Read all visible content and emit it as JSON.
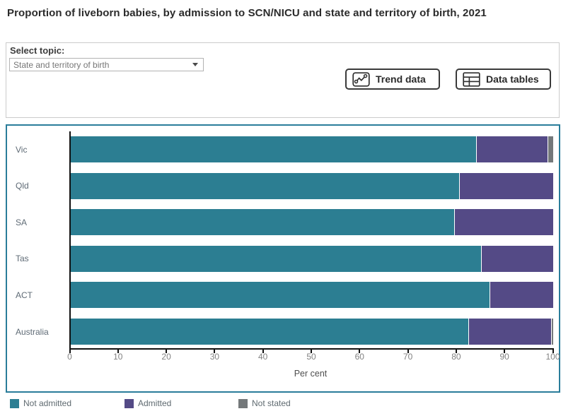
{
  "title": "Proportion of liveborn babies, by admission to SCN/NICU and state and territory of birth, 2021",
  "controls": {
    "select_label": "Select topic:",
    "topic_value": "State and territory of birth",
    "trend_button": "Trend data",
    "tables_button": "Data tables"
  },
  "icons": {
    "dropdown_caret": "chevron-down-icon",
    "trend_button_icon": "line-chart-icon",
    "tables_button_icon": "table-icon"
  },
  "colors": {
    "not_admitted": "#2c7e92",
    "admitted": "#544a86",
    "not_stated": "#74787a",
    "panel_border": "#2a7d9a",
    "axis": "#111111"
  },
  "chart_data": {
    "type": "bar",
    "orientation": "horizontal",
    "stacked": true,
    "categories": [
      "Vic",
      "Qld",
      "SA",
      "Tas",
      "ACT",
      "Australia"
    ],
    "series": [
      {
        "name": "Not admitted",
        "color": "#2c7e92",
        "values": [
          84.0,
          80.5,
          79.5,
          85.0,
          86.8,
          82.3
        ]
      },
      {
        "name": "Admitted",
        "color": "#544a86",
        "values": [
          14.7,
          19.5,
          20.5,
          15.0,
          13.2,
          17.2
        ]
      },
      {
        "name": "Not stated",
        "color": "#74787a",
        "values": [
          1.3,
          0,
          0,
          0,
          0,
          0.5
        ]
      }
    ],
    "xlabel": "Per cent",
    "xlim": [
      0,
      100
    ],
    "x_ticks": [
      0,
      10,
      20,
      30,
      40,
      50,
      60,
      70,
      80,
      90,
      100
    ],
    "grid": false,
    "legend_position": "bottom"
  }
}
